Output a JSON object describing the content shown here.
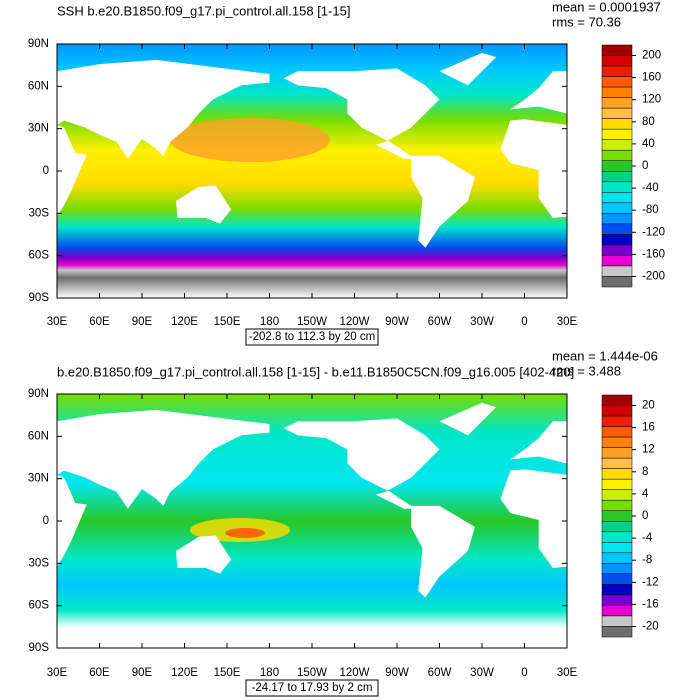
{
  "chart_data": [
    {
      "type": "map",
      "title": "SSH b.e20.B1850.f09_g17.pi_control.all.158 [1-15]",
      "stats": [
        "mean = 0.0001937",
        "rms = 70.36"
      ],
      "range_label": "-202.8 to 112.3 by 20 cm",
      "xlim": [
        30,
        390
      ],
      "xticks": [
        {
          "value": 30,
          "label": "30E"
        },
        {
          "value": 60,
          "label": "60E"
        },
        {
          "value": 90,
          "label": "90E"
        },
        {
          "value": 120,
          "label": "120E"
        },
        {
          "value": 150,
          "label": "150E"
        },
        180,
        {
          "value": 210,
          "label": "150W"
        },
        {
          "value": 240,
          "label": "120W"
        },
        {
          "value": 270,
          "label": "90W"
        },
        {
          "value": 300,
          "label": "60W"
        },
        {
          "value": 330,
          "label": "30W"
        },
        {
          "value": 360,
          "label": "0"
        },
        {
          "value": 390,
          "label": "30E"
        }
      ],
      "ylim": [
        -90,
        90
      ],
      "yticks": [
        {
          "value": 90,
          "label": "90N"
        },
        {
          "value": 60,
          "label": "60N"
        },
        {
          "value": 30,
          "label": "30N"
        },
        0,
        {
          "value": -30,
          "label": "30S"
        },
        {
          "value": -60,
          "label": "60S"
        },
        {
          "value": -90,
          "label": "90S"
        }
      ],
      "colorbar": {
        "levels": [
          200,
          160,
          120,
          80,
          40,
          0,
          -40,
          -80,
          -120,
          -160,
          -200
        ],
        "colors": [
          "#a00000",
          "#d20000",
          "#f01e00",
          "#ff5a00",
          "#ff8200",
          "#ffa028",
          "#ffbe46",
          "#ffdc00",
          "#fff000",
          "#c8f000",
          "#78dc00",
          "#28c828",
          "#00d28c",
          "#00e6c8",
          "#00e6f0",
          "#00c8ff",
          "#0096ff",
          "#0050f0",
          "#0000c8",
          "#7800c8",
          "#e600d2",
          "#c8c8c8",
          "#6e6e6e"
        ]
      }
    },
    {
      "type": "map",
      "title": "b.e20.B1850.f09_g17.pi_control.all.158 [1-15] - b.e11.B1850C5CN.f09_g16.005 [402-420]",
      "stats": [
        "mean = 1.444e-06",
        "rms = 3.488"
      ],
      "range_label": "-24.17 to 17.93 by 2 cm",
      "xlim": [
        30,
        390
      ],
      "xticks": [
        {
          "value": 30,
          "label": "30E"
        },
        {
          "value": 60,
          "label": "60E"
        },
        {
          "value": 90,
          "label": "90E"
        },
        {
          "value": 120,
          "label": "120E"
        },
        {
          "value": 150,
          "label": "150E"
        },
        180,
        {
          "value": 210,
          "label": "150W"
        },
        {
          "value": 240,
          "label": "120W"
        },
        {
          "value": 270,
          "label": "90W"
        },
        {
          "value": 300,
          "label": "60W"
        },
        {
          "value": 330,
          "label": "30W"
        },
        {
          "value": 360,
          "label": "0"
        },
        {
          "value": 390,
          "label": "30E"
        }
      ],
      "ylim": [
        -90,
        90
      ],
      "yticks": [
        {
          "value": 90,
          "label": "90N"
        },
        {
          "value": 60,
          "label": "60N"
        },
        {
          "value": 30,
          "label": "30N"
        },
        0,
        {
          "value": -30,
          "label": "30S"
        },
        {
          "value": -60,
          "label": "60S"
        },
        {
          "value": -90,
          "label": "90S"
        }
      ],
      "colorbar": {
        "levels": [
          20,
          16,
          12,
          8,
          4,
          0,
          -4,
          -8,
          -12,
          -16,
          -20
        ],
        "colors": [
          "#a00000",
          "#d20000",
          "#f01e00",
          "#ff5a00",
          "#ff8200",
          "#ffa028",
          "#ffbe46",
          "#ffdc00",
          "#fff000",
          "#c8f000",
          "#78dc00",
          "#28c828",
          "#00d28c",
          "#00e6c8",
          "#00e6f0",
          "#00c8ff",
          "#0096ff",
          "#0050f0",
          "#0000c8",
          "#7800c8",
          "#e600d2",
          "#c8c8c8",
          "#6e6e6e"
        ]
      }
    }
  ]
}
